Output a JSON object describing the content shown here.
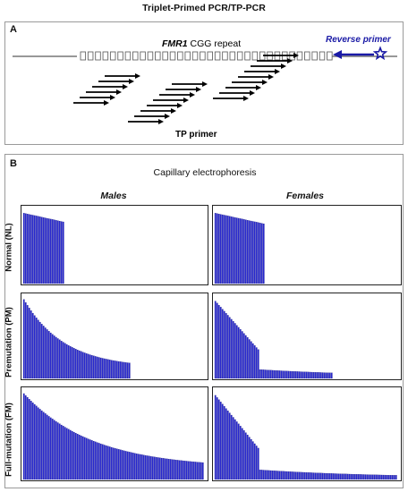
{
  "title": "Triplet-Primed PCR/TP-PCR",
  "panel_a": {
    "label": "A",
    "repeat_label_gene": "FMR1",
    "repeat_label_rest": " CGG repeat",
    "reverse_primer_label": "Reverse primer",
    "tp_primer_label": "TP primer",
    "colors": {
      "reverse_primer": "#1a1aa6",
      "arrow": "#000000"
    }
  },
  "panel_b": {
    "label": "B",
    "title": "Capillary electrophoresis",
    "col_males": "Males",
    "col_females": "Females",
    "row_normal": "Normal (NL)",
    "row_premutation": "Premutation (PM)",
    "row_full": "Full-mutation (FM)",
    "bar_color": "#2b2bdc",
    "bar_edge_color": "#0a0a70"
  },
  "chart_data": [
    {
      "type": "bar",
      "panel": "Males / Normal (NL)",
      "profile": "steep",
      "extent_fraction": 0.22
    },
    {
      "type": "bar",
      "panel": "Females / Normal (NL)",
      "profile": "steep",
      "extent_fraction": 0.27
    },
    {
      "type": "bar",
      "panel": "Males / Premutation (PM)",
      "profile": "decay",
      "extent_fraction": 0.58
    },
    {
      "type": "bar",
      "panel": "Females / Premutation (PM)",
      "profile": "drop-then-tail",
      "extent_fraction": 0.64,
      "drop_at_fraction": 0.24
    },
    {
      "type": "bar",
      "panel": "Males / Full-mutation (FM)",
      "profile": "decay",
      "extent_fraction": 0.99
    },
    {
      "type": "bar",
      "panel": "Females / Full-mutation (FM)",
      "profile": "drop-then-tail",
      "extent_fraction": 0.99,
      "drop_at_fraction": 0.24
    }
  ]
}
